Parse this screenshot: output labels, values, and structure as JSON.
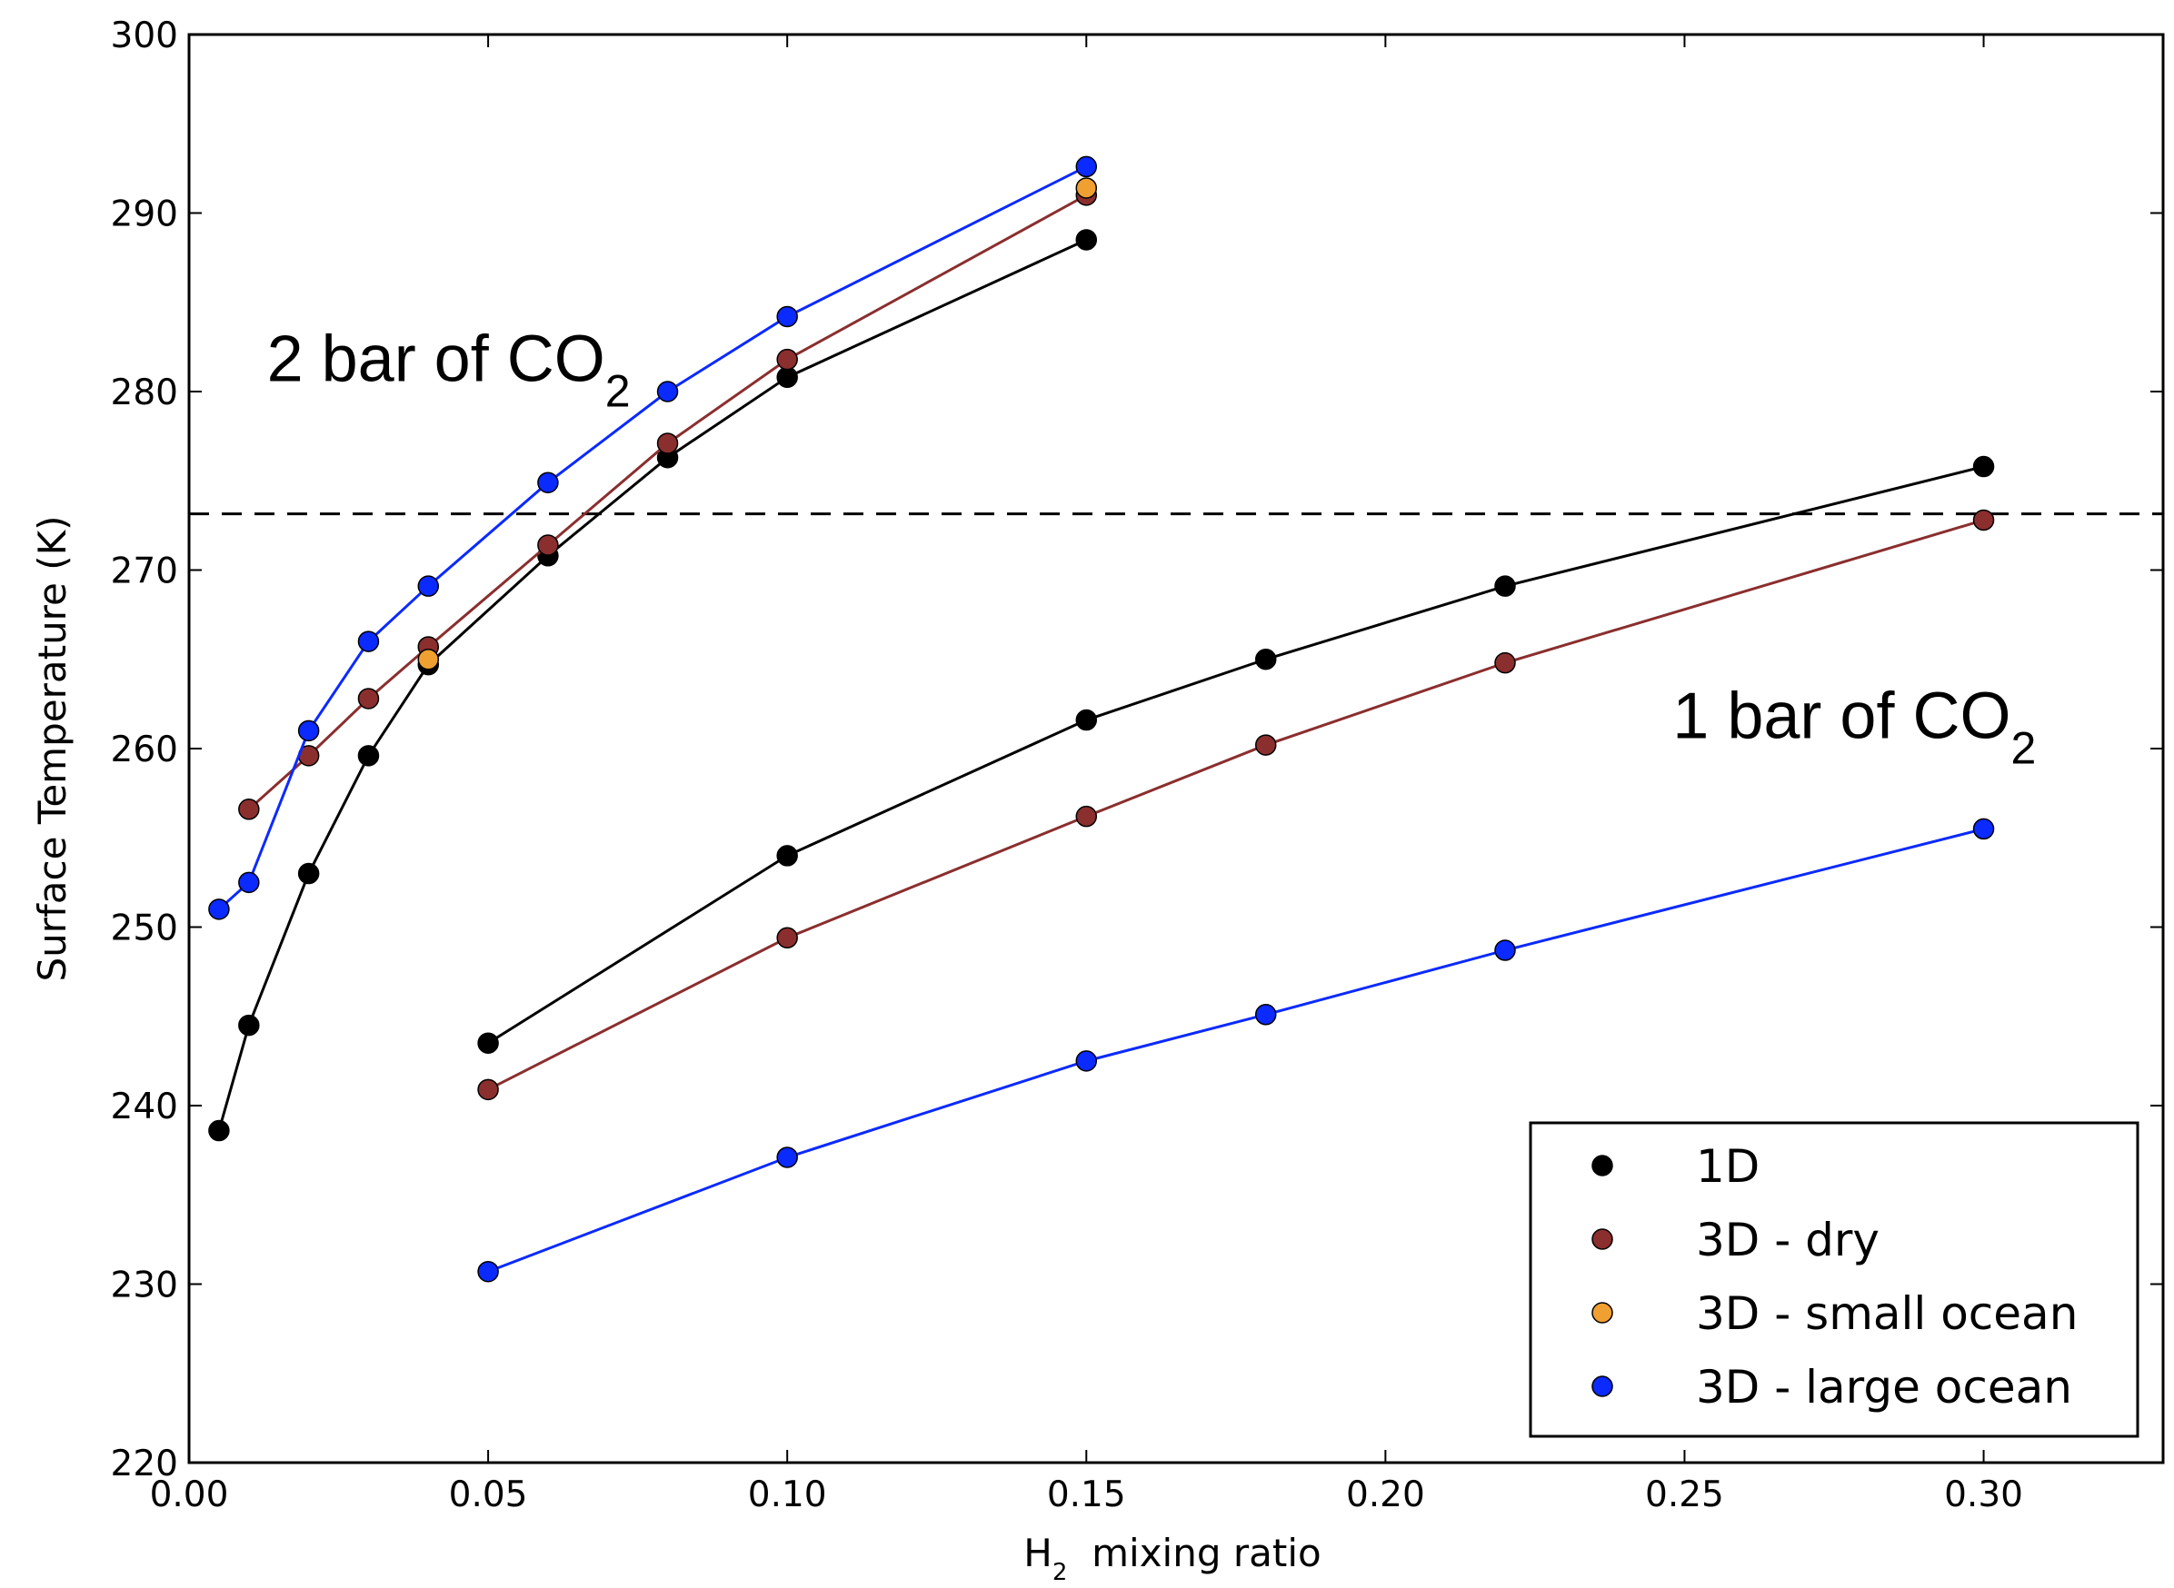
{
  "chart_data": {
    "type": "line",
    "xlabel_main": "H",
    "xlabel_sub": "2",
    "xlabel_rest": "  mixing ratio",
    "ylabel": "Surface Temperature (K)",
    "xlim": [
      0.0,
      0.33
    ],
    "ylim": [
      220,
      300
    ],
    "xticks": [
      "0.00",
      "0.05",
      "0.10",
      "0.15",
      "0.20",
      "0.25",
      "0.30"
    ],
    "xtick_values": [
      0.0,
      0.05,
      0.1,
      0.15,
      0.2,
      0.25,
      0.3
    ],
    "yticks": [
      "220",
      "230",
      "240",
      "250",
      "260",
      "270",
      "280",
      "290",
      "300"
    ],
    "ytick_values": [
      220,
      230,
      240,
      250,
      260,
      270,
      280,
      290,
      300
    ],
    "reference_line": {
      "y": 273.15,
      "style": "dashed",
      "color": "#000000"
    },
    "annotations": [
      {
        "main": "2 bar of CO",
        "sub": "2",
        "x": 0.013,
        "y": 282
      },
      {
        "main": "1 bar of CO",
        "sub": "2",
        "x": 0.248,
        "y": 262
      }
    ],
    "legend": {
      "position": "bottom-right",
      "entries": [
        {
          "label": "1D",
          "color": "#000000"
        },
        {
          "label": "3D - dry",
          "color": "#8b2e2e"
        },
        {
          "label": "3D - small ocean",
          "color": "#f0a030"
        },
        {
          "label": "3D - large ocean",
          "color": "#0a2aff"
        }
      ]
    },
    "series": [
      {
        "name": "1D (2 bar CO2)",
        "color": "#000000",
        "line": true,
        "x": [
          0.005,
          0.01,
          0.02,
          0.03,
          0.04,
          0.06,
          0.08,
          0.1,
          0.15
        ],
        "y": [
          238.6,
          244.5,
          253.0,
          259.6,
          264.7,
          270.8,
          276.3,
          280.8,
          288.5
        ]
      },
      {
        "name": "3D - dry (2 bar CO2)",
        "color": "#8b2e2e",
        "line": true,
        "x": [
          0.01,
          0.02,
          0.03,
          0.04,
          0.06,
          0.08,
          0.1,
          0.15
        ],
        "y": [
          256.6,
          259.6,
          262.8,
          265.7,
          271.4,
          277.1,
          281.8,
          291.0
        ]
      },
      {
        "name": "3D - large ocean (2 bar CO2)",
        "color": "#0a2aff",
        "line": true,
        "x": [
          0.005,
          0.01,
          0.02,
          0.03,
          0.04,
          0.06,
          0.08,
          0.1,
          0.15
        ],
        "y": [
          251.0,
          252.5,
          261.0,
          266.0,
          269.1,
          274.9,
          280.0,
          284.2,
          292.6
        ]
      },
      {
        "name": "3D - small ocean (2 bar CO2)",
        "color": "#f0a030",
        "line": false,
        "x": [
          0.04,
          0.15
        ],
        "y": [
          265.0,
          291.4
        ]
      },
      {
        "name": "1D (1 bar CO2)",
        "color": "#000000",
        "line": true,
        "x": [
          0.05,
          0.1,
          0.15,
          0.18,
          0.22,
          0.3
        ],
        "y": [
          243.5,
          254.0,
          261.6,
          265.0,
          269.1,
          275.8
        ]
      },
      {
        "name": "3D - dry (1 bar CO2)",
        "color": "#8b2e2e",
        "line": true,
        "x": [
          0.05,
          0.1,
          0.15,
          0.18,
          0.22,
          0.3
        ],
        "y": [
          240.9,
          249.4,
          256.2,
          260.2,
          264.8,
          272.8
        ]
      },
      {
        "name": "3D - large ocean (1 bar CO2)",
        "color": "#0a2aff",
        "line": true,
        "x": [
          0.05,
          0.1,
          0.15,
          0.18,
          0.22,
          0.3
        ],
        "y": [
          230.7,
          237.1,
          242.5,
          245.1,
          248.7,
          255.5
        ]
      }
    ]
  }
}
